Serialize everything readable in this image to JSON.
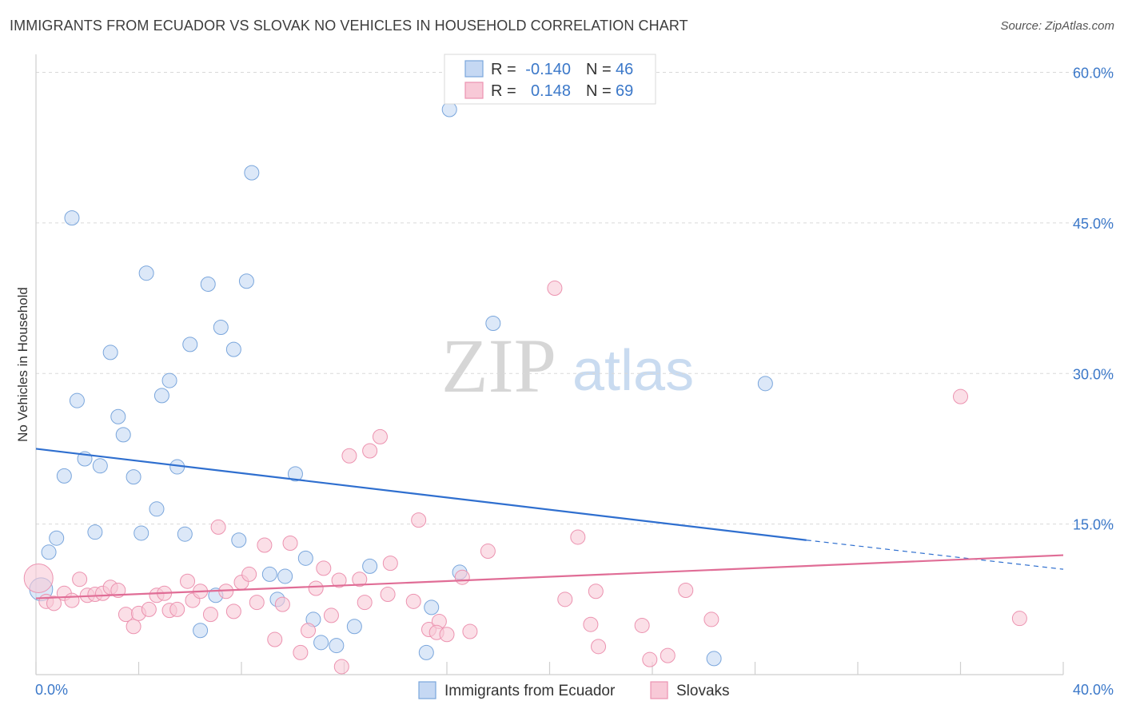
{
  "header": {
    "title": "IMMIGRANTS FROM ECUADOR VS SLOVAK NO VEHICLES IN HOUSEHOLD CORRELATION CHART",
    "source": "Source: ZipAtlas.com"
  },
  "watermark": {
    "zip": "ZIP",
    "atlas": "atlas"
  },
  "legend_box": {
    "rows": [
      {
        "r_label": "R =",
        "r_value": "-0.140",
        "n_label": "N =",
        "n_value": "46"
      },
      {
        "r_label": "R =",
        "r_value": "0.148",
        "n_label": "N =",
        "n_value": "69"
      }
    ]
  },
  "colors": {
    "series1_fill": "#c5d8f3",
    "series1_stroke": "#7aa6dc",
    "series1_line": "#2f6fcf",
    "series2_fill": "#f8c9d7",
    "series2_stroke": "#ec93b0",
    "series2_line": "#e06d96",
    "axis_text": "#3b78c9",
    "grid": "#d9d9d9"
  },
  "chart_data": {
    "type": "scatter",
    "title": "IMMIGRANTS FROM ECUADOR VS SLOVAK NO VEHICLES IN HOUSEHOLD CORRELATION CHART",
    "xlabel": "",
    "ylabel": "No Vehicles in Household",
    "xlim": [
      0,
      40
    ],
    "ylim": [
      0,
      61
    ],
    "x_tick_labels": [
      "0.0%",
      "40.0%"
    ],
    "y_ticks": [
      15,
      30,
      45,
      60
    ],
    "y_tick_labels": [
      "15.0%",
      "30.0%",
      "45.0%",
      "60.0%"
    ],
    "grid": true,
    "legend_position": "bottom-center",
    "series": [
      {
        "name": "Immigrants from Ecuador",
        "r": -0.14,
        "n": 46,
        "trend": {
          "x0": 0,
          "y0": 22.5,
          "x1": 30,
          "y1": 13.4,
          "dashed_to_x": 40,
          "dashed_to_y": 10.5
        },
        "points": [
          [
            0.2,
            8.5,
            1.6
          ],
          [
            0.5,
            12.2,
            1
          ],
          [
            0.8,
            13.6,
            1
          ],
          [
            1.1,
            19.8,
            1
          ],
          [
            1.4,
            45.5,
            1
          ],
          [
            1.6,
            27.3,
            1
          ],
          [
            1.9,
            21.5,
            1
          ],
          [
            2.3,
            14.2,
            1
          ],
          [
            2.5,
            20.8,
            1
          ],
          [
            2.9,
            32.1,
            1
          ],
          [
            3.2,
            25.7,
            1
          ],
          [
            3.4,
            23.9,
            1
          ],
          [
            3.8,
            19.7,
            1
          ],
          [
            4.1,
            14.1,
            1
          ],
          [
            4.3,
            40.0,
            1
          ],
          [
            4.7,
            16.5,
            1
          ],
          [
            4.9,
            27.8,
            1
          ],
          [
            5.2,
            29.3,
            1
          ],
          [
            5.5,
            20.7,
            1
          ],
          [
            5.8,
            14.0,
            1
          ],
          [
            6.0,
            32.9,
            1
          ],
          [
            6.4,
            4.4,
            1
          ],
          [
            6.7,
            38.9,
            1
          ],
          [
            7.0,
            7.9,
            1
          ],
          [
            7.2,
            34.6,
            1
          ],
          [
            7.7,
            32.4,
            1
          ],
          [
            7.9,
            13.4,
            1
          ],
          [
            8.2,
            39.2,
            1
          ],
          [
            8.4,
            50.0,
            1
          ],
          [
            9.1,
            10.0,
            1
          ],
          [
            9.4,
            7.5,
            1
          ],
          [
            9.7,
            9.8,
            1
          ],
          [
            10.1,
            20.0,
            1
          ],
          [
            10.5,
            11.6,
            1
          ],
          [
            10.8,
            5.5,
            1
          ],
          [
            11.1,
            3.2,
            1
          ],
          [
            11.7,
            2.9,
            1
          ],
          [
            12.4,
            4.8,
            1
          ],
          [
            13.0,
            10.8,
            1
          ],
          [
            15.2,
            2.2,
            1
          ],
          [
            15.4,
            6.7,
            1
          ],
          [
            16.1,
            56.3,
            1
          ],
          [
            16.5,
            10.2,
            1
          ],
          [
            17.8,
            35.0,
            1
          ],
          [
            26.4,
            1.6,
            1
          ],
          [
            28.4,
            29.0,
            1
          ]
        ]
      },
      {
        "name": "Slovaks",
        "r": 0.148,
        "n": 69,
        "trend": {
          "x0": 0,
          "y0": 7.6,
          "x1": 40,
          "y1": 11.9
        },
        "points": [
          [
            0.1,
            9.6,
            2
          ],
          [
            0.4,
            7.3,
            1
          ],
          [
            0.7,
            7.1,
            1
          ],
          [
            1.1,
            8.1,
            1
          ],
          [
            1.4,
            7.4,
            1
          ],
          [
            1.7,
            9.5,
            1
          ],
          [
            2.0,
            7.9,
            1
          ],
          [
            2.3,
            8.0,
            1
          ],
          [
            2.6,
            8.1,
            1
          ],
          [
            2.9,
            8.7,
            1
          ],
          [
            3.2,
            8.4,
            1
          ],
          [
            3.5,
            6.0,
            1
          ],
          [
            3.8,
            4.8,
            1
          ],
          [
            4.0,
            6.1,
            1
          ],
          [
            4.4,
            6.5,
            1
          ],
          [
            4.7,
            7.9,
            1
          ],
          [
            5.0,
            8.1,
            1
          ],
          [
            5.2,
            6.4,
            1
          ],
          [
            5.5,
            6.5,
            1
          ],
          [
            5.9,
            9.3,
            1
          ],
          [
            6.1,
            7.4,
            1
          ],
          [
            6.4,
            8.3,
            1
          ],
          [
            6.8,
            6.0,
            1
          ],
          [
            7.1,
            14.7,
            1
          ],
          [
            7.4,
            8.3,
            1
          ],
          [
            7.7,
            6.3,
            1
          ],
          [
            8.0,
            9.2,
            1
          ],
          [
            8.3,
            10.0,
            1
          ],
          [
            8.6,
            7.2,
            1
          ],
          [
            8.9,
            12.9,
            1
          ],
          [
            9.3,
            3.5,
            1
          ],
          [
            9.6,
            7.0,
            1
          ],
          [
            9.9,
            13.1,
            1
          ],
          [
            10.3,
            2.2,
            1
          ],
          [
            10.6,
            4.4,
            1
          ],
          [
            10.9,
            8.6,
            1
          ],
          [
            11.2,
            10.6,
            1
          ],
          [
            11.5,
            5.9,
            1
          ],
          [
            11.8,
            9.4,
            1
          ],
          [
            11.9,
            0.8,
            1
          ],
          [
            12.2,
            21.8,
            1
          ],
          [
            12.6,
            9.5,
            1
          ],
          [
            12.8,
            7.2,
            1
          ],
          [
            13.0,
            22.3,
            1
          ],
          [
            13.4,
            23.7,
            1
          ],
          [
            13.7,
            8.0,
            1
          ],
          [
            13.8,
            11.1,
            1
          ],
          [
            14.7,
            7.3,
            1
          ],
          [
            14.9,
            15.4,
            1
          ],
          [
            15.3,
            4.5,
            1
          ],
          [
            15.7,
            5.3,
            1
          ],
          [
            15.6,
            4.2,
            1
          ],
          [
            16.0,
            4.0,
            1
          ],
          [
            16.6,
            9.7,
            1
          ],
          [
            16.9,
            4.3,
            1
          ],
          [
            17.6,
            12.3,
            1
          ],
          [
            20.2,
            38.5,
            1
          ],
          [
            20.6,
            7.5,
            1
          ],
          [
            21.1,
            13.7,
            1
          ],
          [
            21.6,
            5.0,
            1
          ],
          [
            21.8,
            8.3,
            1
          ],
          [
            21.9,
            2.8,
            1
          ],
          [
            23.6,
            4.9,
            1
          ],
          [
            23.9,
            1.5,
            1
          ],
          [
            24.6,
            1.9,
            1
          ],
          [
            25.3,
            8.4,
            1
          ],
          [
            26.3,
            5.5,
            1
          ],
          [
            36.0,
            27.7,
            1
          ],
          [
            38.3,
            5.6,
            1
          ]
        ]
      }
    ]
  }
}
